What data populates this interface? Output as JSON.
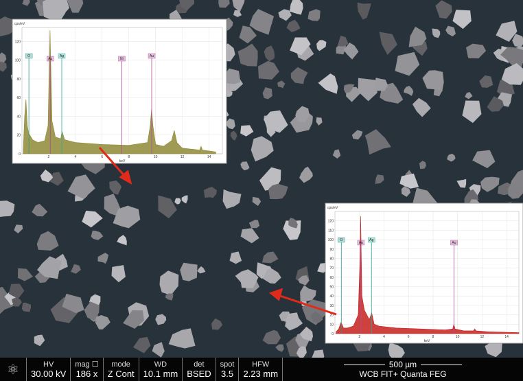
{
  "chart_data": [
    {
      "type": "line",
      "ylabel": "cps/eV",
      "xlabel": "keV",
      "xlim": [
        0,
        15
      ],
      "ylim": [
        0,
        135
      ],
      "xticks": [
        2,
        4,
        6,
        8,
        10,
        12,
        14
      ],
      "yticks": [
        0,
        20,
        40,
        60,
        80,
        100,
        120
      ],
      "series": [
        {
          "color": "#8f8a36",
          "x": [
            0.1,
            0.2,
            0.3,
            0.4,
            0.5,
            0.8,
            1.2,
            1.7,
            1.95,
            2.1,
            2.25,
            2.5,
            2.9,
            3.0,
            3.2,
            4,
            6,
            8,
            9.4,
            9.6,
            9.7,
            9.8,
            10,
            10.6,
            11.2,
            11.4,
            11.6,
            12,
            13.3,
            13.4,
            13.5,
            14.5
          ],
          "values": [
            5,
            40,
            58,
            30,
            22,
            15,
            12,
            14,
            30,
            132,
            35,
            18,
            16,
            24,
            15,
            12,
            10,
            9,
            12,
            30,
            48,
            30,
            10,
            8,
            14,
            25,
            12,
            6,
            4,
            8,
            4,
            2
          ]
        }
      ],
      "peak_labels": [
        {
          "label": "O",
          "x": 0.52,
          "color": "#2a9a8a"
        },
        {
          "label": "Au",
          "x": 2.12,
          "color": "#b04a9a"
        },
        {
          "label": "Ag",
          "x": 2.98,
          "color": "#2aaa9a"
        },
        {
          "label": "Ni",
          "x": 7.47,
          "color": "#b04a9a"
        },
        {
          "label": "Au",
          "x": 9.71,
          "color": "#b04a9a"
        }
      ]
    },
    {
      "type": "line",
      "ylabel": "cps/eV",
      "xlabel": "keV",
      "xlim": [
        0,
        15
      ],
      "ylim": [
        0,
        130
      ],
      "xticks": [
        2,
        4,
        6,
        8,
        10,
        12,
        14
      ],
      "yticks": [
        0,
        10,
        20,
        30,
        40,
        50,
        60,
        70,
        80,
        90,
        100,
        110,
        120
      ],
      "series": [
        {
          "color": "#c4201c",
          "x": [
            0.1,
            0.3,
            0.5,
            0.7,
            1.0,
            1.5,
            1.9,
            2.05,
            2.1,
            2.2,
            2.4,
            2.8,
            3.0,
            3.2,
            3.6,
            5,
            7,
            9,
            9.6,
            9.7,
            9.8,
            10.5,
            11.3,
            11.4,
            11.5,
            12.5,
            15
          ],
          "values": [
            2,
            5,
            12,
            6,
            6,
            8,
            20,
            80,
            125,
            40,
            25,
            15,
            22,
            10,
            8,
            6,
            5,
            4,
            5,
            10,
            5,
            3,
            3,
            5,
            3,
            2,
            1
          ]
        }
      ],
      "peak_labels": [
        {
          "label": "O",
          "x": 0.52,
          "color": "#2a9a8a"
        },
        {
          "label": "Au",
          "x": 2.12,
          "color": "#b04a9a"
        },
        {
          "label": "Ag",
          "x": 2.98,
          "color": "#2aaa9a"
        },
        {
          "label": "Au",
          "x": 9.71,
          "color": "#b04a9a"
        }
      ]
    }
  ],
  "info_bar": {
    "fields": [
      {
        "name": "HV",
        "value": "30.00 kV"
      },
      {
        "name": "mag ☐",
        "value": "186 x"
      },
      {
        "name": "mode",
        "value": "Z Cont"
      },
      {
        "name": "WD",
        "value": "10.1 mm"
      },
      {
        "name": "det",
        "value": "BSED"
      },
      {
        "name": "spot",
        "value": "3.5"
      },
      {
        "name": "HFW",
        "value": "2.23 mm"
      }
    ],
    "scale": "500 µm",
    "instrument": "WCB FIT+ Quanta FEG"
  }
}
